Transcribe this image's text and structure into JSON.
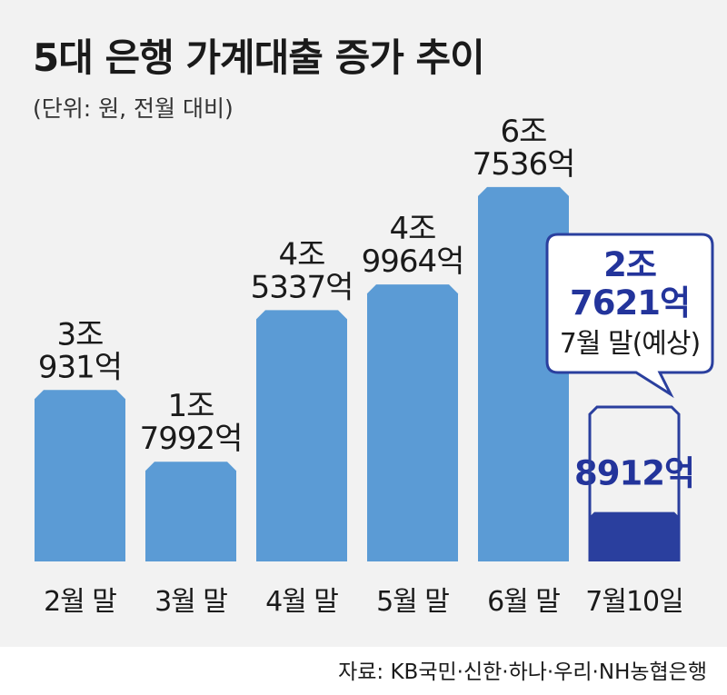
{
  "title": "5대 은행 가계대출 증가 추이",
  "subtitle": "(단위: 원, 전월 대비)",
  "source": "자료: KB국민·신한·하나·우리·NH농협은행",
  "colors": {
    "bar": "#5b9bd5",
    "highlight_bar": "#2a3f9e",
    "highlight_text": "#23349b",
    "text": "#1a1a1a",
    "background": "#f2f2f2"
  },
  "callout": {
    "lines": [
      "2조",
      "7621억"
    ],
    "note": "7월 말(예상)",
    "value": 27621,
    "outline_category": "7월10일"
  },
  "chart_data": {
    "type": "bar",
    "title": "5대 은행 가계대출 증가 추이",
    "subtitle": "(단위: 원, 전월 대비)",
    "unit": "억 원",
    "categories": [
      "2월 말",
      "3월 말",
      "4월 말",
      "5월 말",
      "6월 말",
      "7월10일"
    ],
    "values": [
      30931,
      17992,
      45337,
      49964,
      67536,
      8912
    ],
    "value_labels": [
      [
        "3조",
        "931억"
      ],
      [
        "1조",
        "7992억"
      ],
      [
        "4조",
        "5337억"
      ],
      [
        "4조",
        "9964억"
      ],
      [
        "6조",
        "7536억"
      ],
      [
        "8912억"
      ]
    ],
    "highlight_index": 5,
    "ylim": [
      0,
      75000
    ],
    "grid": false,
    "legend": "none"
  }
}
